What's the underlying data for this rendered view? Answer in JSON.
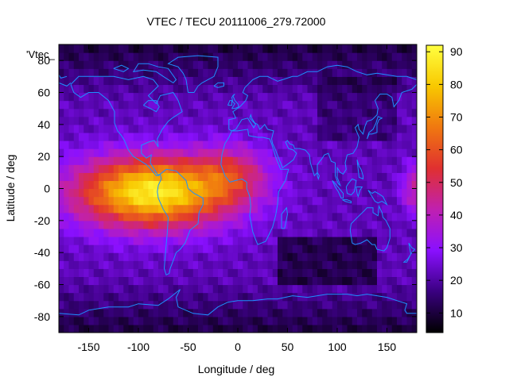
{
  "chart_data": {
    "type": "heatmap",
    "title": "VTEC / TECU 20111006_279.72000",
    "xlabel": "Longitude / deg",
    "ylabel": "Latitude / deg",
    "xlim": [
      -180,
      180
    ],
    "ylim": [
      -90,
      90
    ],
    "x_ticks": [
      "-150",
      "-100",
      "-50",
      "0",
      "50",
      "100",
      "150"
    ],
    "x_tick_values": [
      -150,
      -100,
      -50,
      0,
      50,
      100,
      150
    ],
    "y_ticks": [
      "-80",
      "-60",
      "-40",
      "-20",
      "0",
      "20",
      "40",
      "60",
      "80"
    ],
    "y_tick_values": [
      -80,
      -60,
      -40,
      -20,
      0,
      20,
      40,
      60,
      80
    ],
    "colorbar": {
      "range": [
        4,
        92
      ],
      "ticks": [
        "10",
        "20",
        "30",
        "40",
        "50",
        "60",
        "70",
        "80",
        "90"
      ],
      "tick_values": [
        10,
        20,
        30,
        40,
        50,
        60,
        70,
        80,
        90
      ],
      "colormap": [
        "#000000",
        "#3a0080",
        "#8a10ff",
        "#c020b0",
        "#e03030",
        "#f07810",
        "#f8c800",
        "#ffff40"
      ]
    },
    "legend_entry": "'Vtec_",
    "coastline_color": "#1e90ff",
    "features": {
      "anomaly_peak": {
        "lon": -90,
        "lat": 0,
        "value": 88
      },
      "anomaly_center": {
        "lon": -85,
        "lat": -2
      },
      "anomaly_extent_deg": {
        "lon_half_width": 100,
        "lat_half_width": 28
      },
      "dayside_extension": {
        "lon": -5,
        "lat": 10,
        "value": 58
      },
      "background_value": 22,
      "polar_low_value": 10
    }
  }
}
